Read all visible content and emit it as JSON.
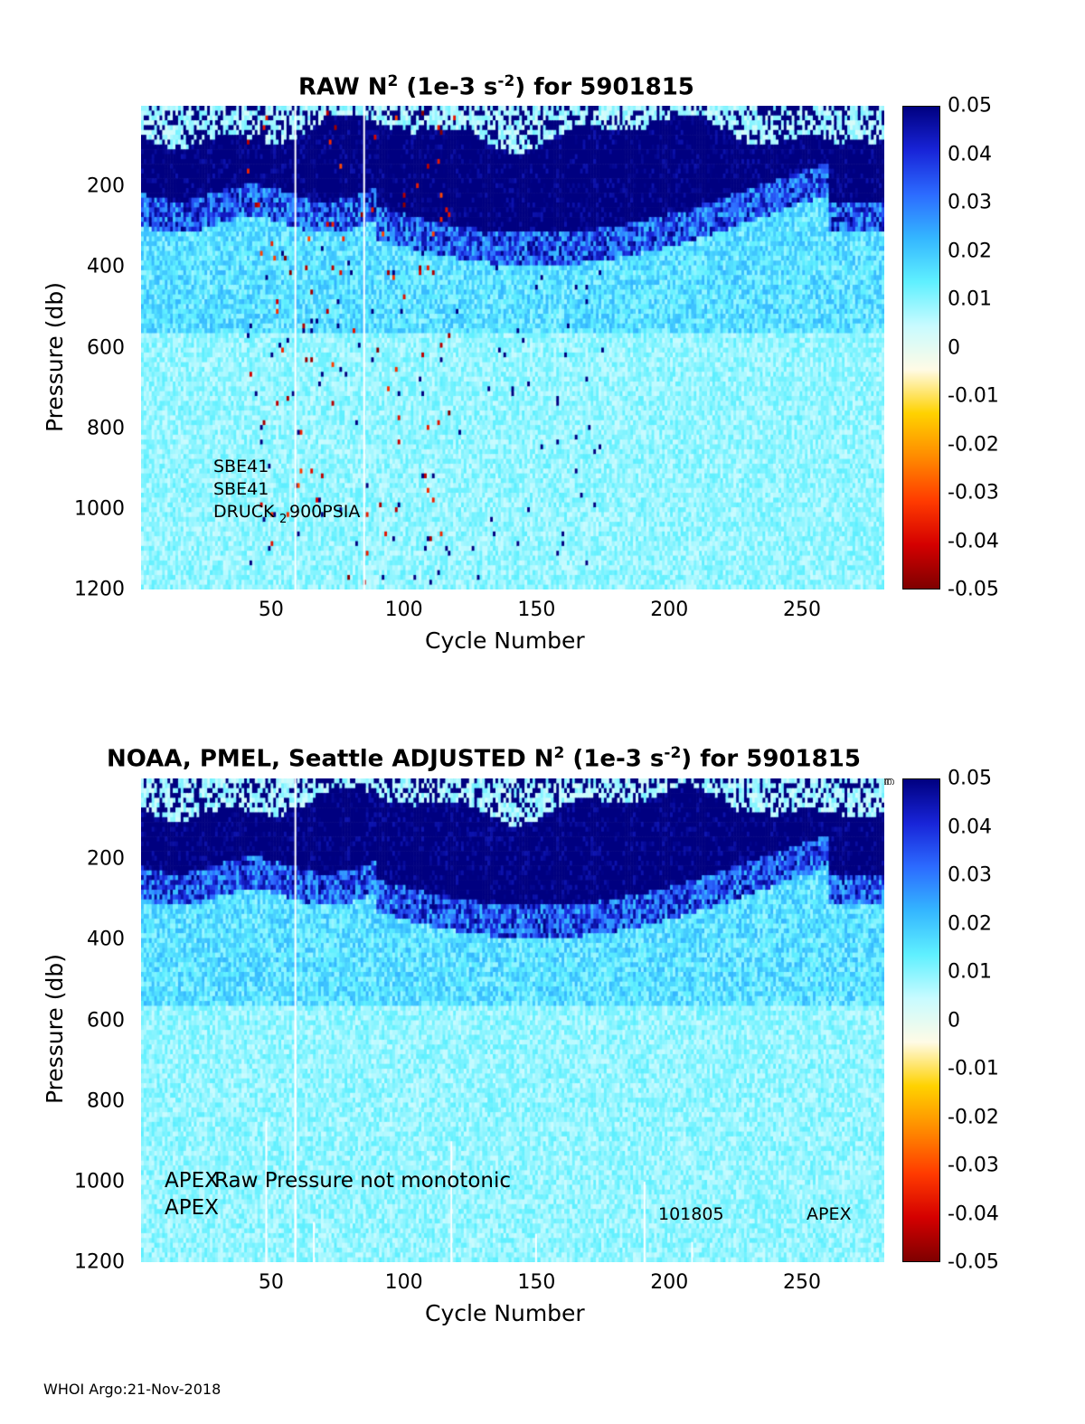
{
  "figure": {
    "footer": "WHOI Argo:21-Nov-2018"
  },
  "colorbar": {
    "ticks": [
      "0.05",
      "0.04",
      "0.03",
      "0.02",
      "0.01",
      "0",
      "-0.01",
      "-0.02",
      "-0.03",
      "-0.04",
      "-0.05"
    ],
    "colors": [
      "#7f0000",
      "#d40000",
      "#ff3b00",
      "#ff8a00",
      "#ffd200",
      "#fffbe6",
      "#c8fbff",
      "#5ff0ff",
      "#34b6ff",
      "#2c6bff",
      "#1824d8",
      "#000080"
    ]
  },
  "chart_data": [
    {
      "type": "heatmap",
      "title_main": "RAW N",
      "title_sup1": "2",
      "title_mid": " (1e-3 s",
      "title_sup2": "-2",
      "title_end": ") for 5901815",
      "xlabel": "Cycle Number",
      "ylabel": "Pressure (db)",
      "xlim": [
        1,
        281
      ],
      "ylim": [
        0,
        1200
      ],
      "y_reversed": true,
      "xticks": [
        "50",
        "100",
        "150",
        "200",
        "250"
      ],
      "yticks": [
        "200",
        "400",
        "600",
        "800",
        "1000",
        "1200"
      ],
      "clim": [
        -0.05,
        0.05
      ],
      "annotations": [
        "SBE41",
        "SBE41",
        "DRUCK",
        "2",
        "900PSIA"
      ],
      "layers": [
        {
          "pmin": 0,
          "pmax": 90,
          "desc": "mixed near-zero values",
          "value": 0.003
        },
        {
          "pmin": 90,
          "pmax": 380,
          "desc": "strong stratification",
          "value": 0.05
        },
        {
          "pmin": 380,
          "pmax": 600,
          "desc": "moderate",
          "value": 0.015
        },
        {
          "pmin": 600,
          "pmax": 1200,
          "desc": "weak",
          "value": 0.008
        }
      ]
    },
    {
      "type": "heatmap",
      "title_prefix": "NOAA, PMEL, Seattle  ADJUSTED N",
      "title_sup1": "2",
      "title_mid": " (1e-3 s",
      "title_sup2": "-2",
      "title_end": ") for 5901815",
      "xlabel": "Cycle Number",
      "ylabel": "Pressure (db)",
      "xlim": [
        1,
        281
      ],
      "ylim": [
        0,
        1200
      ],
      "y_reversed": true,
      "xticks": [
        "50",
        "100",
        "150",
        "200",
        "250"
      ],
      "yticks": [
        "200",
        "400",
        "600",
        "800",
        "1000",
        "1200"
      ],
      "clim": [
        -0.05,
        0.05
      ],
      "annotations": [
        "APEX",
        "Raw Pressure not monotonic",
        "APEX",
        "101805",
        "APEX"
      ]
    }
  ]
}
